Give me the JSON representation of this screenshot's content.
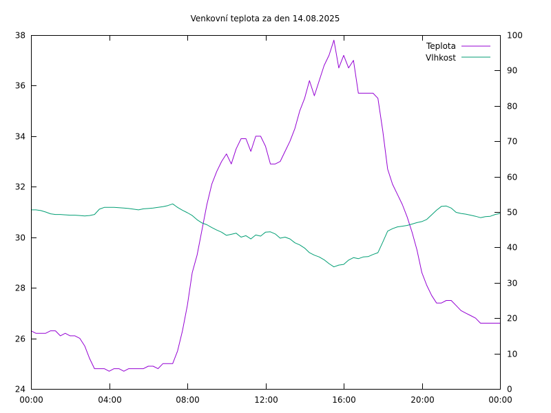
{
  "chart_data": {
    "type": "line",
    "title": "Venkovní teplota za den 14.08.2025",
    "xlabel": "",
    "ylabel": "",
    "x_ticks": [
      "00:00",
      "04:00",
      "08:00",
      "12:00",
      "16:00",
      "20:00",
      "00:00"
    ],
    "xlim_hours": [
      0,
      24
    ],
    "ylim": [
      24,
      38
    ],
    "y_ticks": [
      24,
      26,
      28,
      30,
      32,
      34,
      36,
      38
    ],
    "y2lim": [
      0,
      100
    ],
    "y2_ticks": [
      0,
      10,
      20,
      30,
      40,
      50,
      60,
      70,
      80,
      90,
      100
    ],
    "grid": false,
    "legend_position": "top-right",
    "series": [
      {
        "name": "Teplota",
        "axis": "left",
        "color": "#9400d3",
        "x_hours": [
          0,
          0.25,
          0.5,
          0.75,
          1.0,
          1.25,
          1.5,
          1.75,
          2.0,
          2.25,
          2.5,
          2.75,
          3.0,
          3.25,
          3.5,
          3.75,
          4.0,
          4.25,
          4.5,
          4.75,
          5.0,
          5.25,
          5.5,
          5.75,
          6.0,
          6.25,
          6.5,
          6.75,
          7.0,
          7.25,
          7.5,
          7.75,
          8.0,
          8.25,
          8.5,
          8.75,
          9.0,
          9.25,
          9.5,
          9.75,
          10.0,
          10.25,
          10.5,
          10.75,
          11.0,
          11.25,
          11.5,
          11.75,
          12.0,
          12.25,
          12.5,
          12.75,
          13.0,
          13.25,
          13.5,
          13.75,
          14.0,
          14.25,
          14.5,
          14.75,
          15.0,
          15.25,
          15.5,
          15.75,
          16.0,
          16.25,
          16.5,
          16.75,
          17.0,
          17.25,
          17.5,
          17.75,
          18.0,
          18.25,
          18.5,
          18.75,
          19.0,
          19.25,
          19.5,
          19.75,
          20.0,
          20.25,
          20.5,
          20.75,
          21.0,
          21.25,
          21.5,
          21.75,
          22.0,
          22.25,
          22.5,
          22.75,
          23.0,
          23.25,
          23.5,
          23.75,
          24.0
        ],
        "values": [
          26.3,
          26.2,
          26.2,
          26.2,
          26.3,
          26.3,
          26.1,
          26.2,
          26.1,
          26.1,
          26.0,
          25.7,
          25.2,
          24.8,
          24.8,
          24.8,
          24.7,
          24.8,
          24.8,
          24.7,
          24.8,
          24.8,
          24.8,
          24.8,
          24.9,
          24.9,
          24.8,
          25.0,
          25.0,
          25.0,
          25.5,
          26.3,
          27.3,
          28.6,
          29.3,
          30.3,
          31.3,
          32.1,
          32.6,
          33.0,
          33.3,
          32.9,
          33.5,
          33.9,
          33.9,
          33.4,
          34.0,
          34.0,
          33.6,
          32.9,
          32.9,
          33.0,
          33.4,
          33.8,
          34.3,
          35.0,
          35.5,
          36.2,
          35.6,
          36.2,
          36.8,
          37.2,
          37.8,
          36.7,
          37.2,
          36.7,
          37.0,
          35.7,
          35.7,
          35.7,
          35.7,
          35.5,
          34.2,
          32.7,
          32.1,
          31.7,
          31.3,
          30.8,
          30.2,
          29.5,
          28.6,
          28.1,
          27.7,
          27.4,
          27.4,
          27.5,
          27.5,
          27.3,
          27.1,
          27.0,
          26.9,
          26.8,
          26.6,
          26.6,
          26.6,
          26.6,
          26.6
        ]
      },
      {
        "name": "Vlhkost",
        "axis": "right",
        "color": "#009e73",
        "x_hours": [
          0,
          0.25,
          0.5,
          0.75,
          1.0,
          1.25,
          1.5,
          1.75,
          2.0,
          2.25,
          2.5,
          2.75,
          3.0,
          3.25,
          3.5,
          3.75,
          4.0,
          4.25,
          4.5,
          4.75,
          5.0,
          5.25,
          5.5,
          5.75,
          6.0,
          6.25,
          6.5,
          6.75,
          7.0,
          7.25,
          7.5,
          7.75,
          8.0,
          8.25,
          8.5,
          8.75,
          9.0,
          9.25,
          9.5,
          9.75,
          10.0,
          10.25,
          10.5,
          10.75,
          11.0,
          11.25,
          11.5,
          11.75,
          12.0,
          12.25,
          12.5,
          12.75,
          13.0,
          13.25,
          13.5,
          13.75,
          14.0,
          14.25,
          14.5,
          14.75,
          15.0,
          15.25,
          15.5,
          15.75,
          16.0,
          16.25,
          16.5,
          16.75,
          17.0,
          17.25,
          17.5,
          17.75,
          18.0,
          18.25,
          18.5,
          18.75,
          19.0,
          19.25,
          19.5,
          19.75,
          20.0,
          20.25,
          20.5,
          20.75,
          21.0,
          21.25,
          21.5,
          21.75,
          22.0,
          22.25,
          22.5,
          22.75,
          23.0,
          23.25,
          23.5,
          23.75,
          24.0
        ],
        "values": [
          50.6,
          50.6,
          50.4,
          50.0,
          49.5,
          49.3,
          49.3,
          49.2,
          49.1,
          49.1,
          49.0,
          48.9,
          49.0,
          49.3,
          50.8,
          51.3,
          51.3,
          51.3,
          51.2,
          51.1,
          51.0,
          50.8,
          50.6,
          50.9,
          51.0,
          51.1,
          51.3,
          51.5,
          51.8,
          52.3,
          51.3,
          50.5,
          49.8,
          49.0,
          47.8,
          46.9,
          46.4,
          45.6,
          44.9,
          44.3,
          43.4,
          43.7,
          44.0,
          42.9,
          43.3,
          42.4,
          43.5,
          43.2,
          44.3,
          44.4,
          43.8,
          42.6,
          42.9,
          42.4,
          41.3,
          40.7,
          39.8,
          38.5,
          37.8,
          37.3,
          36.5,
          35.4,
          34.5,
          35.0,
          35.2,
          36.4,
          37.1,
          36.8,
          37.3,
          37.4,
          38.0,
          38.5,
          41.5,
          44.6,
          45.3,
          45.8,
          46.0,
          46.2,
          46.6,
          47.0,
          47.3,
          47.9,
          49.2,
          50.5,
          51.6,
          51.7,
          51.1,
          49.9,
          49.6,
          49.4,
          49.1,
          48.8,
          48.4,
          48.7,
          48.8,
          49.3,
          49.6
        ]
      }
    ]
  }
}
